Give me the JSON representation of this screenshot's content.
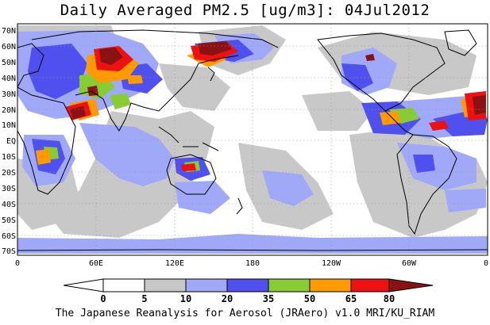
{
  "title": "Daily Averaged PM2.5 [ug/m3]: 04Jul2012",
  "footer": "The Japanese Reanalysis for Aerosol (JRAero) v1.0 MRI/KU_RIAM",
  "lat_labels": [
    "70N",
    "60N",
    "50N",
    "40N",
    "30N",
    "20N",
    "10N",
    "EQ",
    "10S",
    "20S",
    "30S",
    "40S",
    "50S",
    "60S",
    "70S"
  ],
  "lon_labels": [
    "0",
    "60E",
    "120E",
    "180",
    "120W",
    "60W",
    "0"
  ],
  "colorbar": {
    "ticks": [
      "0",
      "5",
      "10",
      "20",
      "35",
      "50",
      "65",
      "80"
    ],
    "colors": [
      "#ffffff",
      "#c8c8c8",
      "#a0a8f8",
      "#5050ee",
      "#88cc33",
      "#ff9a00",
      "#ee1111",
      "#8a1212"
    ]
  },
  "map_colors": {
    "gray": "#c8c8c8",
    "light_blue": "#a0a8f8",
    "blue": "#5050ee",
    "green": "#88cc33",
    "orange": "#ff9a00",
    "red": "#ee1111",
    "dark_red": "#8a1212",
    "land": "#000000"
  }
}
